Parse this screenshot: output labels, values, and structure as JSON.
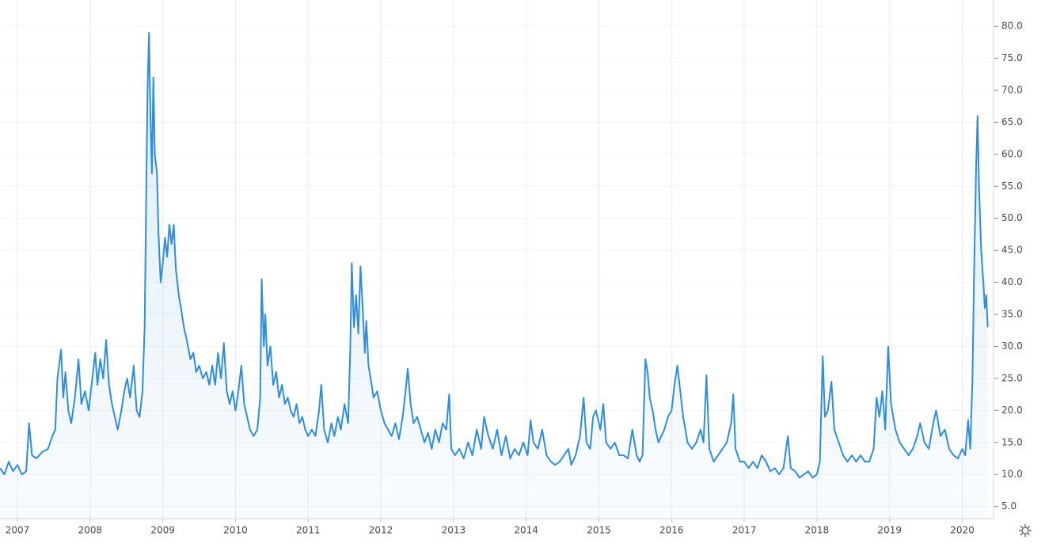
{
  "chart_data": {
    "type": "area",
    "color": "#2f8ddb",
    "grid": true,
    "xlim": [
      2006.76,
      2020.43
    ],
    "ylim": [
      3.1,
      84.1
    ],
    "xticks": [
      2007,
      2008,
      2009,
      2010,
      2011,
      2012,
      2013,
      2014,
      2015,
      2016,
      2017,
      2018,
      2019,
      2020
    ],
    "yticks": [
      {
        "value": 5,
        "label": "5.0"
      },
      {
        "value": 10,
        "label": "10.0"
      },
      {
        "value": 15,
        "label": "15.0"
      },
      {
        "value": 20,
        "label": "20.0"
      },
      {
        "value": 25,
        "label": "25.0"
      },
      {
        "value": 30,
        "label": "30.0"
      },
      {
        "value": 35,
        "label": "35.0"
      },
      {
        "value": 40,
        "label": "40.0"
      },
      {
        "value": 45,
        "label": "45.0"
      },
      {
        "value": 50,
        "label": "50.0"
      },
      {
        "value": 55,
        "label": "55.0"
      },
      {
        "value": 60,
        "label": "60.0"
      },
      {
        "value": 65,
        "label": "65.0"
      },
      {
        "value": 70,
        "label": "70.0"
      },
      {
        "value": 75,
        "label": "75.0"
      },
      {
        "value": 80,
        "label": "80.0"
      }
    ],
    "x": [
      2006.76,
      2006.82,
      2006.88,
      2006.94,
      2007.0,
      2007.06,
      2007.12,
      2007.16,
      2007.2,
      2007.26,
      2007.34,
      2007.42,
      2007.48,
      2007.52,
      2007.55,
      2007.6,
      2007.63,
      2007.66,
      2007.7,
      2007.74,
      2007.79,
      2007.84,
      2007.88,
      2007.93,
      2007.98,
      2008.03,
      2008.07,
      2008.1,
      2008.14,
      2008.18,
      2008.22,
      2008.26,
      2008.3,
      2008.34,
      2008.38,
      2008.43,
      2008.47,
      2008.51,
      2008.55,
      2008.6,
      2008.64,
      2008.68,
      2008.72,
      2008.75,
      2008.77,
      2008.79,
      2008.81,
      2008.83,
      2008.85,
      2008.87,
      2008.89,
      2008.92,
      2008.94,
      2008.97,
      2009.0,
      2009.03,
      2009.06,
      2009.09,
      2009.12,
      2009.15,
      2009.18,
      2009.22,
      2009.25,
      2009.29,
      2009.33,
      2009.38,
      2009.42,
      2009.46,
      2009.5,
      2009.55,
      2009.6,
      2009.64,
      2009.68,
      2009.72,
      2009.76,
      2009.8,
      2009.84,
      2009.88,
      2009.92,
      2009.96,
      2010.0,
      2010.04,
      2010.08,
      2010.12,
      2010.16,
      2010.2,
      2010.25,
      2010.3,
      2010.34,
      2010.36,
      2010.39,
      2010.41,
      2010.44,
      2010.48,
      2010.52,
      2010.56,
      2010.6,
      2010.64,
      2010.68,
      2010.72,
      2010.76,
      2010.8,
      2010.84,
      2010.88,
      2010.92,
      2010.96,
      2011.0,
      2011.05,
      2011.1,
      2011.15,
      2011.18,
      2011.22,
      2011.27,
      2011.32,
      2011.36,
      2011.41,
      2011.45,
      2011.5,
      2011.55,
      2011.58,
      2011.6,
      2011.63,
      2011.66,
      2011.69,
      2011.72,
      2011.75,
      2011.78,
      2011.8,
      2011.83,
      2011.86,
      2011.9,
      2011.95,
      2012.0,
      2012.05,
      2012.1,
      2012.15,
      2012.2,
      2012.25,
      2012.3,
      2012.34,
      2012.37,
      2012.41,
      2012.45,
      2012.5,
      2012.55,
      2012.6,
      2012.65,
      2012.7,
      2012.75,
      2012.8,
      2012.85,
      2012.9,
      2012.94,
      2012.97,
      2013.02,
      2013.08,
      2013.14,
      2013.2,
      2013.26,
      2013.32,
      2013.38,
      2013.42,
      2013.48,
      2013.54,
      2013.6,
      2013.66,
      2013.72,
      2013.78,
      2013.84,
      2013.9,
      2013.96,
      2014.02,
      2014.06,
      2014.1,
      2014.16,
      2014.22,
      2014.28,
      2014.34,
      2014.4,
      2014.46,
      2014.52,
      2014.58,
      2014.62,
      2014.68,
      2014.74,
      2014.79,
      2014.83,
      2014.88,
      2014.92,
      2014.96,
      2015.02,
      2015.06,
      2015.1,
      2015.16,
      2015.22,
      2015.28,
      2015.34,
      2015.4,
      2015.46,
      2015.52,
      2015.56,
      2015.6,
      2015.64,
      2015.67,
      2015.7,
      2015.74,
      2015.78,
      2015.82,
      2015.86,
      2015.9,
      2015.95,
      2016.0,
      2016.04,
      2016.08,
      2016.12,
      2016.16,
      2016.22,
      2016.28,
      2016.34,
      2016.4,
      2016.44,
      2016.48,
      2016.52,
      2016.58,
      2016.64,
      2016.7,
      2016.76,
      2016.82,
      2016.85,
      2016.88,
      2016.94,
      2017.0,
      2017.06,
      2017.12,
      2017.18,
      2017.24,
      2017.3,
      2017.36,
      2017.42,
      2017.48,
      2017.54,
      2017.6,
      2017.64,
      2017.7,
      2017.76,
      2017.82,
      2017.88,
      2017.94,
      2018.0,
      2018.04,
      2018.08,
      2018.11,
      2018.15,
      2018.2,
      2018.24,
      2018.3,
      2018.36,
      2018.42,
      2018.48,
      2018.54,
      2018.6,
      2018.66,
      2018.72,
      2018.78,
      2018.82,
      2018.86,
      2018.9,
      2018.94,
      2018.98,
      2019.02,
      2019.08,
      2019.14,
      2019.2,
      2019.26,
      2019.32,
      2019.38,
      2019.42,
      2019.48,
      2019.54,
      2019.6,
      2019.64,
      2019.7,
      2019.76,
      2019.82,
      2019.88,
      2019.94,
      2020.0,
      2020.04,
      2020.08,
      2020.11,
      2020.14,
      2020.16,
      2020.19,
      2020.21,
      2020.23,
      2020.26,
      2020.29,
      2020.31,
      2020.33,
      2020.35
    ],
    "values": [
      11,
      10,
      12,
      10.5,
      11.5,
      10,
      10.5,
      18,
      13,
      12.5,
      13.5,
      14,
      16,
      17,
      25,
      29.5,
      22,
      26,
      20,
      18,
      22,
      28,
      21,
      23,
      20,
      25,
      29,
      24,
      28,
      25,
      31,
      24,
      21,
      19,
      17,
      20,
      23,
      25,
      22,
      27,
      20,
      19,
      23,
      33,
      52,
      70,
      79,
      66,
      57,
      72,
      60,
      57,
      48,
      40,
      43,
      47,
      44,
      49,
      46,
      49,
      42,
      38,
      36,
      33,
      31,
      28,
      29,
      26,
      27,
      25,
      26,
      24,
      27,
      24,
      29,
      25,
      30.5,
      23,
      21,
      23,
      20,
      23,
      27,
      21,
      19,
      17,
      16,
      17,
      22,
      40.5,
      30,
      35,
      27,
      30,
      24,
      26,
      22,
      24,
      21,
      22,
      20,
      19,
      21,
      18,
      19,
      17,
      16,
      17,
      16,
      20,
      24,
      17,
      15,
      18,
      16,
      19,
      17,
      21,
      18,
      30,
      43,
      33,
      38,
      32,
      42.5,
      36,
      29,
      34,
      27,
      25,
      22,
      23,
      20,
      18,
      17,
      16,
      18,
      15.5,
      19,
      23,
      26.5,
      21,
      18,
      19,
      17,
      15,
      16.5,
      14,
      17,
      15,
      18,
      17,
      22.5,
      14,
      13,
      14,
      12.5,
      15,
      13,
      17,
      14,
      19,
      16,
      14,
      17,
      13,
      16,
      12.5,
      14,
      13,
      15,
      13,
      18.5,
      15,
      14,
      17,
      13,
      12,
      11.5,
      12,
      13,
      14,
      11.5,
      13,
      16,
      22,
      15,
      14,
      19,
      20,
      17,
      21,
      15,
      14,
      15,
      13,
      13,
      12.5,
      17,
      13,
      12,
      13,
      28,
      26,
      22,
      20,
      17,
      15,
      16,
      17,
      19,
      20,
      24,
      27,
      23,
      19,
      15,
      14,
      15,
      17,
      15,
      25.5,
      14,
      12,
      13,
      14,
      15,
      18,
      22.5,
      14,
      12,
      12,
      11,
      12,
      11,
      13,
      12,
      10.5,
      11,
      10,
      11,
      16,
      11,
      10.5,
      9.5,
      10,
      10.5,
      9.5,
      10,
      12,
      28.5,
      19,
      20,
      24.5,
      17,
      15,
      13,
      12,
      13,
      12,
      13,
      12,
      12,
      14,
      22,
      19,
      23,
      17,
      30,
      21,
      17,
      15,
      14,
      13,
      14,
      16,
      18,
      15,
      14,
      18,
      20,
      16,
      17,
      14,
      13,
      12.5,
      14,
      13,
      18.5,
      14,
      25,
      40,
      58,
      66,
      55,
      45,
      40,
      36,
      38,
      33
    ]
  }
}
